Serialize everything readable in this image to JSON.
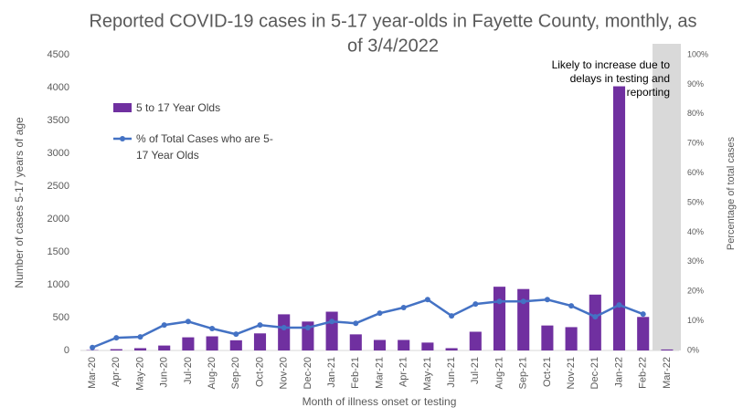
{
  "chart_data": {
    "type": "bar",
    "title": [
      "Reported COVID-19 cases in 5-17 year-olds in Fayette County, monthly, as",
      "of 3/4/2022"
    ],
    "x_label": "Month of illness onset or testing",
    "y_label": "Number of cases 5-17 years of age",
    "y2_label": "Percentage of total cases",
    "annotation": [
      "Likely to increase due to",
      "delays in testing and",
      "reporting"
    ],
    "categories": [
      "Mar-20",
      "Apr-20",
      "May-20",
      "Jun-20",
      "Jul-20",
      "Aug-20",
      "Sep-20",
      "Oct-20",
      "Nov-20",
      "Dec-20",
      "Jan-21",
      "Feb-21",
      "Mar-21",
      "Apr-21",
      "May-21",
      "Jun-21",
      "Jul-21",
      "Aug-21",
      "Sep-21",
      "Oct-21",
      "Nov-21",
      "Dec-21",
      "Jan-22",
      "Feb-22",
      "Mar-22"
    ],
    "series": [
      {
        "name": "5 to 17 Year Olds",
        "type": "bar",
        "color": "#7030a0",
        "values": [
          5,
          20,
          35,
          75,
          200,
          215,
          155,
          260,
          550,
          440,
          590,
          245,
          160,
          160,
          120,
          35,
          285,
          970,
          935,
          380,
          355,
          850,
          4020,
          510,
          15
        ]
      },
      {
        "name": "% of Total Cases who are 5-17 Year Olds",
        "type": "line",
        "axis": "y2",
        "color": "#4472c4",
        "values": [
          1,
          4.3,
          4.6,
          8.6,
          9.8,
          7.4,
          5.5,
          8.6,
          7.7,
          7.7,
          9.8,
          9.2,
          12.6,
          14.5,
          17.2,
          11.7,
          15.7,
          16.6,
          16.6,
          17.2,
          15.1,
          11.4,
          15.4,
          12.3,
          null
        ]
      }
    ],
    "ylim": [
      0,
      4500
    ],
    "yticks": [
      0,
      500,
      1000,
      1500,
      2000,
      2500,
      3000,
      3500,
      4000,
      4500
    ],
    "y2lim": [
      0,
      100
    ],
    "y2ticks": [
      {
        "value": 0,
        "label": "0%"
      },
      {
        "value": 10,
        "label": "10%"
      },
      {
        "value": 20,
        "label": "20%"
      },
      {
        "value": 30,
        "label": "30%"
      },
      {
        "value": 40,
        "label": "40%"
      },
      {
        "value": 50,
        "label": "50%"
      },
      {
        "value": 60,
        "label": "60%"
      },
      {
        "value": 70,
        "label": "70%"
      },
      {
        "value": 80,
        "label": "80%"
      },
      {
        "value": 90,
        "label": "90%"
      },
      {
        "value": 100,
        "label": "100%"
      }
    ],
    "grid": false
  }
}
